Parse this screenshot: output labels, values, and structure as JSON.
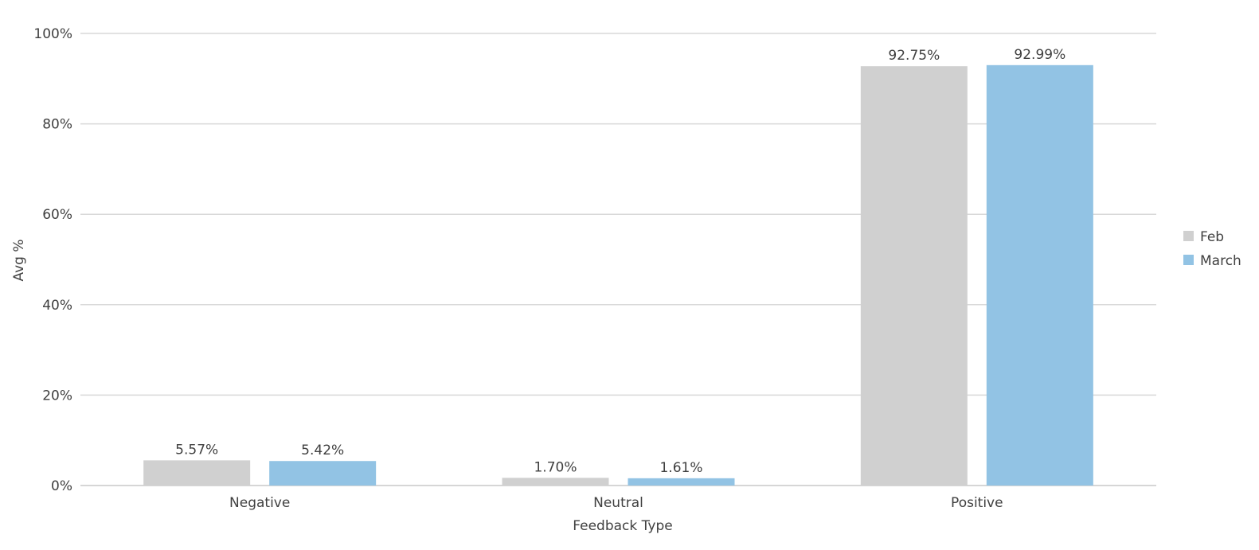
{
  "chart_data": {
    "type": "bar",
    "xlabel": "Feedback Type",
    "ylabel": "Avg %",
    "categories": [
      "Negative",
      "Neutral",
      "Positive"
    ],
    "series": [
      {
        "name": "Feb",
        "color": "#d0d0d0",
        "values": [
          5.57,
          1.7,
          92.75
        ],
        "labels": [
          "5.57%",
          "1.70%",
          "92.75%"
        ]
      },
      {
        "name": "March",
        "color": "#92c3e4",
        "values": [
          5.42,
          1.61,
          92.99
        ],
        "labels": [
          "5.42%",
          "1.61%",
          "92.99%"
        ]
      }
    ],
    "ylim": [
      0,
      100
    ],
    "yticks": [
      0,
      20,
      40,
      60,
      80,
      100
    ],
    "ytick_labels": [
      "0%",
      "20%",
      "40%",
      "60%",
      "80%",
      "100%"
    ],
    "grid": true,
    "legend_position": "right",
    "gridline_color": "#d9d9d9",
    "text_color": "#404040"
  }
}
